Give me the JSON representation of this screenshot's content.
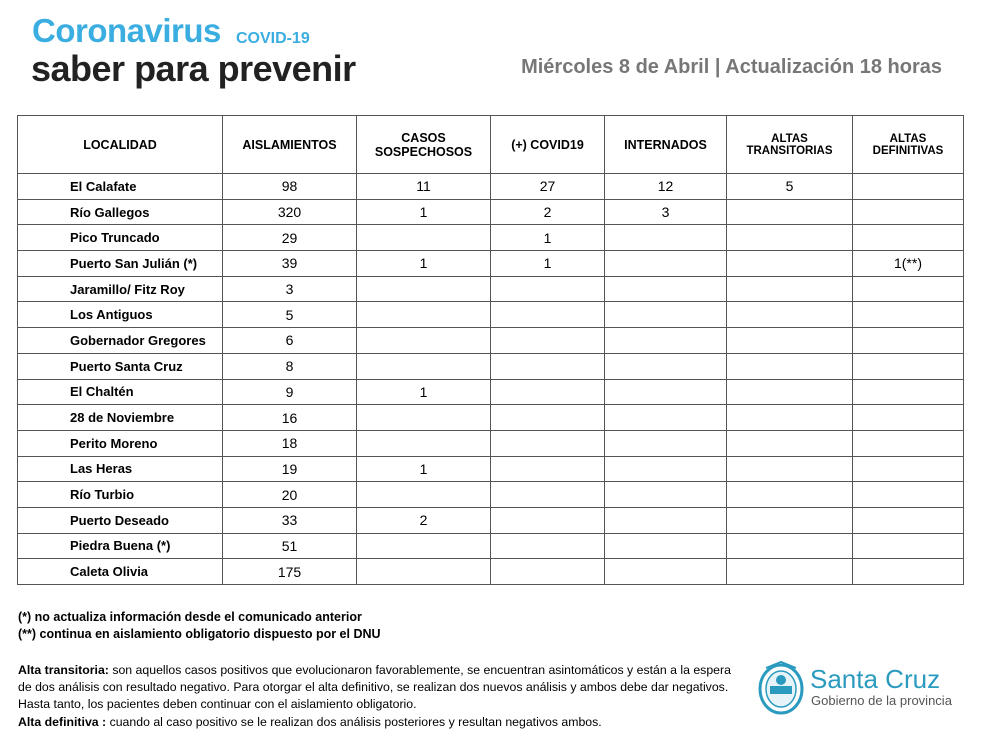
{
  "header": {
    "title": "Coronavirus",
    "tag": "COVID-19",
    "subtitle": "saber para prevenir",
    "date": "Miércoles 8 de Abril | Actualización 18 horas"
  },
  "table": {
    "columns": [
      "LOCALIDAD",
      "AISLAMIENTOS",
      "CASOS SOSPECHOSOS",
      "(+) COVID19",
      "INTERNADOS",
      "ALTAS TRANSITORIAS",
      "ALTAS DEFINITIVAS"
    ],
    "rows": [
      [
        "El Calafate",
        98,
        11,
        27,
        12,
        5,
        null
      ],
      [
        "Río Gallegos",
        320,
        1,
        2,
        3,
        null,
        null
      ],
      [
        "Pico Truncado",
        29,
        null,
        1,
        null,
        null,
        null
      ],
      [
        "Puerto San Julián (*)",
        39,
        1,
        1,
        null,
        null,
        "1(**)"
      ],
      [
        "Jaramillo/ Fitz Roy",
        3,
        null,
        null,
        null,
        null,
        null
      ],
      [
        "Los Antiguos",
        5,
        null,
        null,
        null,
        null,
        null
      ],
      [
        "Gobernador Gregores",
        6,
        null,
        null,
        null,
        null,
        null
      ],
      [
        "Puerto Santa Cruz",
        8,
        null,
        null,
        null,
        null,
        null
      ],
      [
        "El Chaltén",
        9,
        1,
        null,
        null,
        null,
        null
      ],
      [
        "28 de Noviembre",
        16,
        null,
        null,
        null,
        null,
        null
      ],
      [
        "Perito Moreno",
        18,
        null,
        null,
        null,
        null,
        null
      ],
      [
        "Las Heras",
        19,
        1,
        null,
        null,
        null,
        null
      ],
      [
        "Río Turbio",
        20,
        null,
        null,
        null,
        null,
        null
      ],
      [
        "Puerto Deseado",
        33,
        2,
        null,
        null,
        null,
        null
      ],
      [
        "Piedra Buena (*)",
        51,
        null,
        null,
        null,
        null,
        null
      ],
      [
        "Caleta Olivia",
        175,
        null,
        null,
        null,
        null,
        null
      ]
    ]
  },
  "notes": [
    "(*) no actualiza información desde el comunicado anterior",
    "(**) continua en aislamiento obligatorio dispuesto por el DNU"
  ],
  "definitions": [
    {
      "term": "Alta transitoria:",
      "text": "son aquellos casos positivos que evolucionaron favorablemente, se encuentran asintomáticos y están a la espera de dos análisis con resultado negativo. Para otorgar el alta definitivo, se realizan dos nuevos análisis y ambos debe dar negativos. Hasta tanto, los pacientes deben continuar con el aislamiento obligatorio."
    },
    {
      "term": "Alta definitiva :",
      "text": "cuando al caso positivo se le realizan dos análisis posteriores y resultan negativos ambos."
    }
  ],
  "logo": {
    "name": "Santa Cruz",
    "caption": "Gobierno de la provincia"
  }
}
